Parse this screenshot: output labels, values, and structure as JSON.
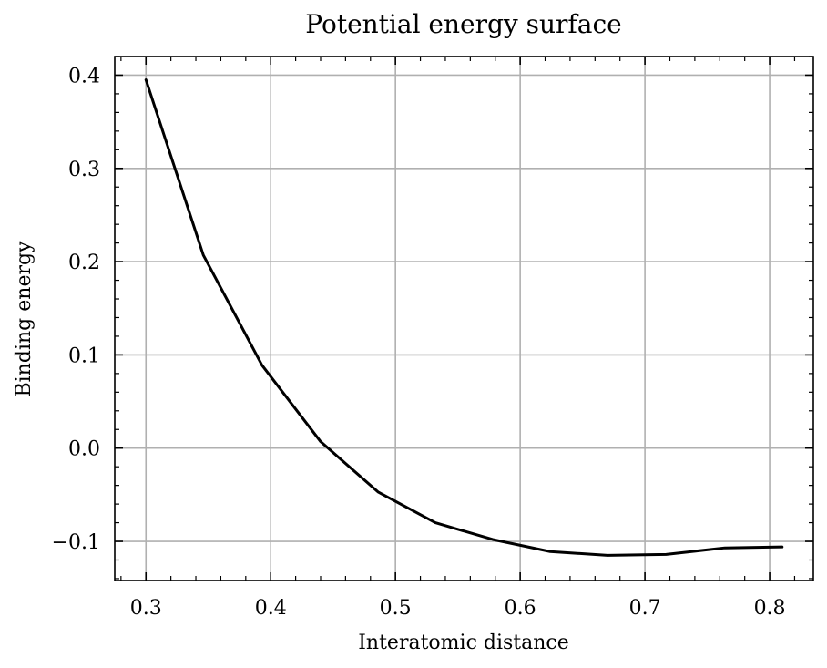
{
  "chart_data": {
    "type": "line",
    "title": "Potential energy surface",
    "xlabel": "Interatomic distance",
    "ylabel": "Binding energy",
    "xlim": [
      0.275,
      0.835
    ],
    "ylim": [
      -0.142,
      0.42
    ],
    "xticks": [
      0.3,
      0.4,
      0.5,
      0.6,
      0.7,
      0.8
    ],
    "xtick_labels": [
      "0.3",
      "0.4",
      "0.5",
      "0.6",
      "0.7",
      "0.8"
    ],
    "yticks": [
      -0.1,
      0.0,
      0.1,
      0.2,
      0.3,
      0.4
    ],
    "ytick_labels": [
      "−0.1",
      "0.0",
      "0.1",
      "0.2",
      "0.3",
      "0.4"
    ],
    "grid": true,
    "series": [
      {
        "color": "#000000",
        "x": [
          0.3,
          0.346,
          0.393,
          0.44,
          0.486,
          0.532,
          0.578,
          0.624,
          0.67,
          0.717,
          0.764,
          0.81
        ],
        "y": [
          0.395,
          0.207,
          0.089,
          0.007,
          -0.047,
          -0.08,
          -0.098,
          -0.111,
          -0.115,
          -0.114,
          -0.107,
          -0.106
        ]
      }
    ]
  }
}
